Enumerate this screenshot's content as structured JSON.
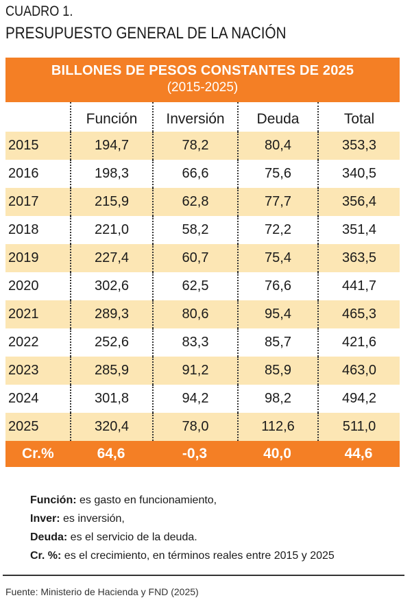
{
  "label": "CUADRO 1.",
  "title": "PRESUPUESTO GENERAL DE LA NACIÓN",
  "table": {
    "heading": "BILLONES DE PESOS CONSTANTES DE 2025",
    "subheading": "(2015-2025)",
    "columns": [
      "",
      "Función",
      "Inversión",
      "Deuda",
      "Total"
    ],
    "rows": [
      [
        "2015",
        "194,7",
        "78,2",
        "80,4",
        "353,3"
      ],
      [
        "2016",
        "198,3",
        "66,6",
        "75,6",
        "340,5"
      ],
      [
        "2017",
        "215,9",
        "62,8",
        "77,7",
        "356,4"
      ],
      [
        "2018",
        "221,0",
        "58,2",
        "72,2",
        "351,4"
      ],
      [
        "2019",
        "227,4",
        "60,7",
        "75,4",
        "363,5"
      ],
      [
        "2020",
        "302,6",
        "62,5",
        "76,6",
        "441,7"
      ],
      [
        "2021",
        "289,3",
        "80,6",
        "95,4",
        "465,3"
      ],
      [
        "2022",
        "252,6",
        "83,3",
        "85,7",
        "421,6"
      ],
      [
        "2023",
        "285,9",
        "91,2",
        "85,9",
        "463,0"
      ],
      [
        "2024",
        "301,8",
        "94,2",
        "98,2",
        "494,2"
      ],
      [
        "2025",
        "320,4",
        "78,0",
        "112,6",
        "511,0"
      ]
    ],
    "growth_row": [
      "Cr.%",
      "64,6",
      "-0,3",
      "40,0",
      "44,6"
    ]
  },
  "notes": [
    {
      "term": "Función:",
      "text": " es gasto en funcionamiento,"
    },
    {
      "term": "Inver:",
      "text": " es inversión,"
    },
    {
      "term": "Deuda:",
      "text": " es el servicio de la deuda."
    },
    {
      "term": "Cr. %:",
      "text": " es el crecimiento, en términos reales entre 2015 y  2025"
    }
  ],
  "source": "Fuente: Ministerio de Hacienda y FND (2025)",
  "colors": {
    "accent": "#f47f25",
    "band": "#fce6b4"
  }
}
